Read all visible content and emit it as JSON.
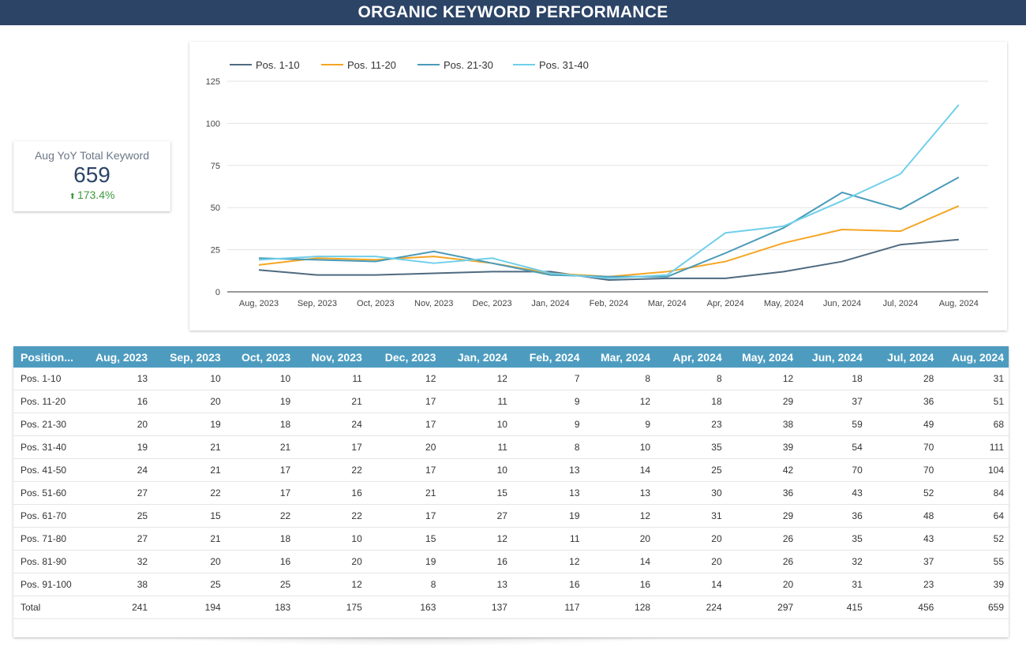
{
  "header": {
    "title": "ORGANIC KEYWORD PERFORMANCE"
  },
  "kpi": {
    "label": "Aug YoY Total Keyword",
    "value": "659",
    "change": "173.4%",
    "change_icon": "arrow-up-icon"
  },
  "colors": {
    "header_bg": "#2c4466",
    "table_header_bg": "#4d9cc0",
    "positive": "#3c9a3c",
    "series": [
      "#4e6a80",
      "#f5a623",
      "#4a9ab8",
      "#6fcfea"
    ]
  },
  "chart_data": {
    "type": "line",
    "title": "",
    "xlabel": "",
    "ylabel": "",
    "categories": [
      "Aug, 2023",
      "Sep, 2023",
      "Oct, 2023",
      "Nov, 2023",
      "Dec, 2023",
      "Jan, 2024",
      "Feb, 2024",
      "Mar, 2024",
      "Apr, 2024",
      "May, 2024",
      "Jun, 2024",
      "Jul, 2024",
      "Aug, 2024"
    ],
    "ylim": [
      0,
      125
    ],
    "yticks": [
      0,
      25,
      50,
      75,
      100,
      125
    ],
    "grid": true,
    "legend_position": "top-left",
    "series": [
      {
        "name": "Pos. 1-10",
        "values": [
          13,
          10,
          10,
          11,
          12,
          12,
          7,
          8,
          8,
          12,
          18,
          28,
          31
        ]
      },
      {
        "name": "Pos. 11-20",
        "values": [
          16,
          20,
          19,
          21,
          17,
          11,
          9,
          12,
          18,
          29,
          37,
          36,
          51
        ]
      },
      {
        "name": "Pos. 21-30",
        "values": [
          20,
          19,
          18,
          24,
          17,
          10,
          9,
          9,
          23,
          38,
          59,
          49,
          68
        ]
      },
      {
        "name": "Pos. 31-40",
        "values": [
          19,
          21,
          21,
          17,
          20,
          11,
          8,
          10,
          35,
          39,
          54,
          70,
          111
        ]
      }
    ]
  },
  "table": {
    "headers": [
      "Position...",
      "Aug, 2023",
      "Sep, 2023",
      "Oct, 2023",
      "Nov, 2023",
      "Dec, 2023",
      "Jan, 2024",
      "Feb, 2024",
      "Mar, 2024",
      "Apr, 2024",
      "May, 2024",
      "Jun, 2024",
      "Jul, 2024",
      "Aug, 2024"
    ],
    "rows": [
      [
        "Pos. 1-10",
        "13",
        "10",
        "10",
        "11",
        "12",
        "12",
        "7",
        "8",
        "8",
        "12",
        "18",
        "28",
        "31"
      ],
      [
        "Pos. 11-20",
        "16",
        "20",
        "19",
        "21",
        "17",
        "11",
        "9",
        "12",
        "18",
        "29",
        "37",
        "36",
        "51"
      ],
      [
        "Pos. 21-30",
        "20",
        "19",
        "18",
        "24",
        "17",
        "10",
        "9",
        "9",
        "23",
        "38",
        "59",
        "49",
        "68"
      ],
      [
        "Pos. 31-40",
        "19",
        "21",
        "21",
        "17",
        "20",
        "11",
        "8",
        "10",
        "35",
        "39",
        "54",
        "70",
        "111"
      ],
      [
        "Pos. 41-50",
        "24",
        "21",
        "17",
        "22",
        "17",
        "10",
        "13",
        "14",
        "25",
        "42",
        "70",
        "70",
        "104"
      ],
      [
        "Pos. 51-60",
        "27",
        "22",
        "17",
        "16",
        "21",
        "15",
        "13",
        "13",
        "30",
        "36",
        "43",
        "52",
        "84"
      ],
      [
        "Pos. 61-70",
        "25",
        "15",
        "22",
        "22",
        "17",
        "27",
        "19",
        "12",
        "31",
        "29",
        "36",
        "48",
        "64"
      ],
      [
        "Pos. 71-80",
        "27",
        "21",
        "18",
        "10",
        "15",
        "12",
        "11",
        "20",
        "20",
        "26",
        "35",
        "43",
        "52"
      ],
      [
        "Pos. 81-90",
        "32",
        "20",
        "16",
        "20",
        "19",
        "16",
        "12",
        "14",
        "20",
        "26",
        "32",
        "37",
        "55"
      ],
      [
        "Pos. 91-100",
        "38",
        "25",
        "25",
        "12",
        "8",
        "13",
        "16",
        "16",
        "14",
        "20",
        "31",
        "23",
        "39"
      ],
      [
        "Total",
        "241",
        "194",
        "183",
        "175",
        "163",
        "137",
        "117",
        "128",
        "224",
        "297",
        "415",
        "456",
        "659"
      ]
    ]
  }
}
